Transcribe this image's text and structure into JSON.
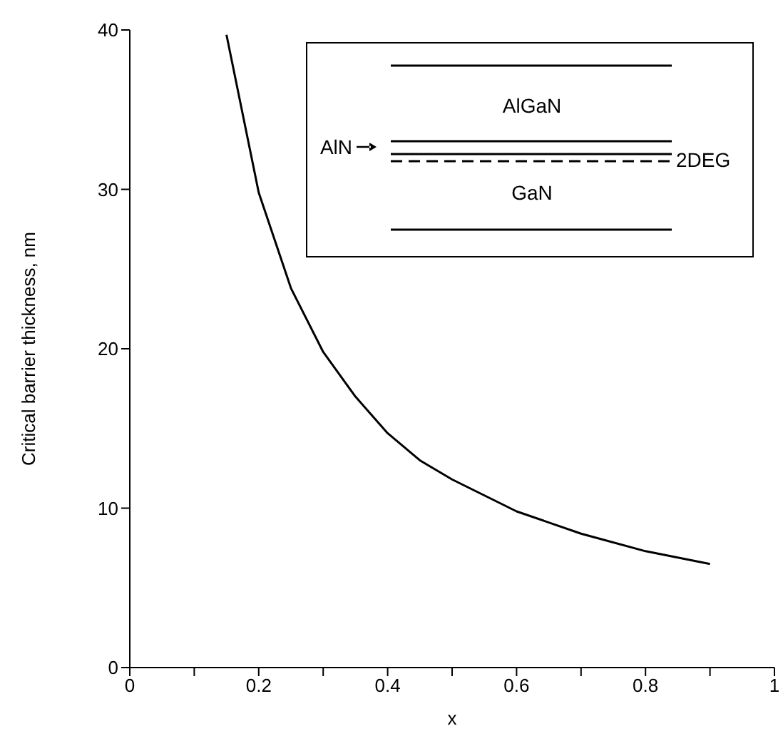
{
  "chart_data": {
    "type": "line",
    "xlabel": "x",
    "ylabel": "Critical barrier thickness, nm",
    "x": [
      0.15,
      0.2,
      0.25,
      0.3,
      0.35,
      0.4,
      0.45,
      0.5,
      0.6,
      0.7,
      0.8,
      0.9
    ],
    "series": [
      {
        "color": "#000000",
        "values": [
          39.7,
          29.8,
          23.8,
          19.8,
          17.0,
          14.7,
          13.0,
          11.8,
          9.8,
          8.4,
          7.3,
          6.5
        ]
      }
    ],
    "xlim": [
      0,
      1
    ],
    "xticks": [
      0,
      {
        "value": 0.1,
        "label": null
      },
      0.2,
      {
        "value": 0.3,
        "label": null
      },
      0.4,
      {
        "value": 0.5,
        "label": null
      },
      0.6,
      {
        "value": 0.7,
        "label": null
      },
      0.8,
      {
        "value": 0.9,
        "label": null
      },
      1
    ],
    "ylim": [
      0,
      40
    ],
    "yticks": [
      0,
      10,
      20,
      30,
      40
    ],
    "grid": false,
    "legend": false,
    "marker": "none",
    "line_style": "solid",
    "annotations": [
      "AlGaN",
      "AlN",
      "GaN",
      "2DEG"
    ]
  }
}
